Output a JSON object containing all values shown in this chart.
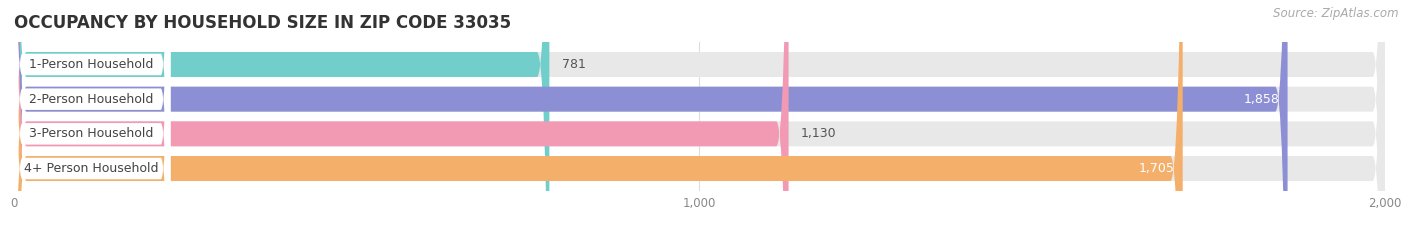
{
  "title": "OCCUPANCY BY HOUSEHOLD SIZE IN ZIP CODE 33035",
  "source": "Source: ZipAtlas.com",
  "categories": [
    "1-Person Household",
    "2-Person Household",
    "3-Person Household",
    "4+ Person Household"
  ],
  "values": [
    781,
    1858,
    1130,
    1705
  ],
  "bar_colors": [
    "#72ceca",
    "#8c8fd4",
    "#f29ab4",
    "#f4b06a"
  ],
  "xlim": [
    0,
    2000
  ],
  "xticks": [
    0,
    1000,
    2000
  ],
  "background_color": "#ffffff",
  "bar_bg_color": "#e8e8e8",
  "title_fontsize": 12,
  "source_fontsize": 8.5,
  "label_fontsize": 9,
  "value_fontsize": 9
}
